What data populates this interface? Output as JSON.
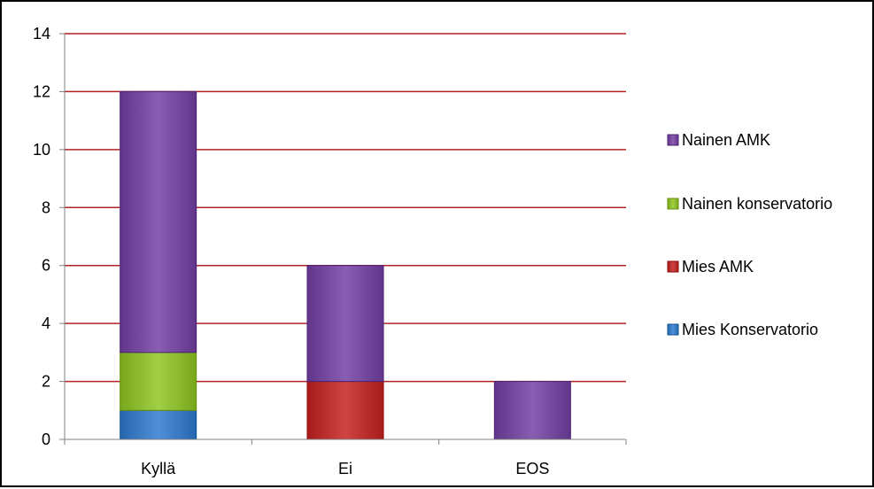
{
  "chart_data": {
    "type": "bar",
    "stacked": true,
    "categories": [
      "Kyllä",
      "Ei",
      "EOS"
    ],
    "series": [
      {
        "name": "Mies Konservatorio",
        "values": [
          1,
          0,
          0
        ],
        "color": "#3F80C8"
      },
      {
        "name": "Mies AMK",
        "values": [
          0,
          2,
          0
        ],
        "color": "#C03434"
      },
      {
        "name": "Nainen konservatorio",
        "values": [
          2,
          0,
          0
        ],
        "color": "#92C035"
      },
      {
        "name": "Nainen AMK",
        "values": [
          9,
          4,
          2
        ],
        "color": "#7A4FA3"
      }
    ],
    "legend_order": [
      "Nainen AMK",
      "Nainen konservatorio",
      "Mies AMK",
      "Mies Konservatorio"
    ],
    "legend_position": "right",
    "ylim": [
      0,
      14
    ],
    "yticks": [
      "0",
      "2",
      "4",
      "6",
      "8",
      "10",
      "12",
      "14"
    ],
    "grid": true,
    "grid_color": "#B22222",
    "title": "",
    "xlabel": "",
    "ylabel": ""
  }
}
